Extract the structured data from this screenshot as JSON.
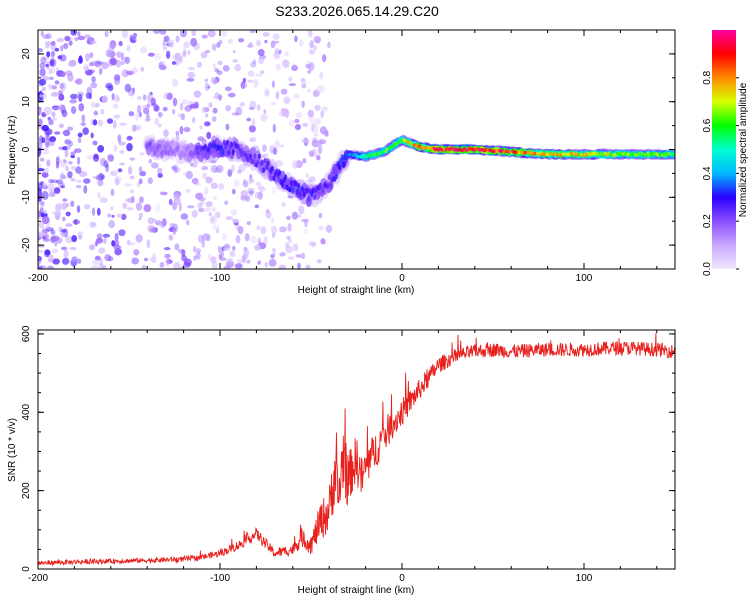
{
  "figure_title": "S233.2026.065.14.29.C20",
  "chart_data": [
    {
      "type": "heatmap",
      "title": "S233.2026.065.14.29.C20",
      "xlabel": "Height of straight line (km)",
      "ylabel": "Frequency (Hz)",
      "xlim": [
        -200,
        150
      ],
      "ylim": [
        -25,
        25
      ],
      "x_ticks": [
        -200,
        -100,
        0,
        100
      ],
      "y_ticks": [
        -20,
        -10,
        0,
        10,
        20
      ],
      "ridge": {
        "description": "Doppler trace (dominant spectral ridge)",
        "x": [
          -140,
          -130,
          -120,
          -110,
          -100,
          -90,
          -80,
          -70,
          -60,
          -50,
          -40,
          -35,
          -30,
          -20,
          -10,
          0,
          10,
          20,
          40,
          60,
          80,
          100,
          120,
          150
        ],
        "freq": [
          0.5,
          0.0,
          -0.5,
          -0.5,
          0.5,
          0.0,
          -2.0,
          -5.0,
          -8.0,
          -10.0,
          -7.0,
          -4.0,
          -1.0,
          -1.5,
          -0.5,
          2.0,
          0.5,
          0.0,
          0.0,
          -0.5,
          -1.0,
          -1.0,
          -1.0,
          -1.0
        ],
        "amplitude": [
          0.2,
          0.18,
          0.15,
          0.25,
          0.3,
          0.25,
          0.25,
          0.28,
          0.3,
          0.28,
          0.25,
          0.3,
          0.35,
          0.55,
          0.6,
          0.65,
          0.8,
          0.9,
          0.95,
          0.85,
          0.75,
          0.7,
          0.65,
          0.6
        ]
      },
      "noise_region": {
        "x_from": -200,
        "x_to": -40,
        "amplitude": 0.05
      }
    },
    {
      "type": "colorbar",
      "label": "Normalized spectral amplitude",
      "range": [
        0,
        1
      ],
      "ticks": [
        "0.0",
        "0.2",
        "0.4",
        "0.6",
        "0.8"
      ],
      "tick_values": [
        0.0,
        0.2,
        0.4,
        0.6,
        0.8
      ],
      "colors_low_to_high": [
        "#f2e8ff",
        "#c9a8ff",
        "#8a4dff",
        "#2a00ff",
        "#00b8ff",
        "#00ffd0",
        "#00ff00",
        "#d8ff00",
        "#ff8a00",
        "#ff0000",
        "#ff00a0"
      ]
    },
    {
      "type": "line",
      "xlabel": "Height of straight line (km)",
      "ylabel": "SNR (10 * v/v)",
      "xlim": [
        -200,
        150
      ],
      "ylim": [
        0,
        610
      ],
      "x_ticks": [
        -200,
        -100,
        0,
        100
      ],
      "y_ticks": [
        0,
        200,
        400,
        600
      ],
      "series": [
        {
          "name": "SNR",
          "color": "#e8201c",
          "x": [
            -200,
            -180,
            -160,
            -140,
            -120,
            -110,
            -100,
            -90,
            -80,
            -70,
            -60,
            -55,
            -50,
            -45,
            -40,
            -37,
            -35,
            -32,
            -30,
            -27,
            -25,
            -22,
            -20,
            -15,
            -10,
            -5,
            0,
            5,
            10,
            15,
            20,
            30,
            40,
            50,
            60,
            80,
            100,
            120,
            140,
            150
          ],
          "y": [
            15,
            18,
            20,
            22,
            25,
            30,
            40,
            60,
            90,
            40,
            50,
            80,
            60,
            120,
            150,
            250,
            180,
            300,
            220,
            260,
            280,
            230,
            260,
            300,
            340,
            370,
            400,
            430,
            460,
            490,
            520,
            545,
            555,
            560,
            555,
            560,
            560,
            565,
            560,
            555
          ],
          "noise_amplitude": [
            10,
            10,
            10,
            10,
            12,
            12,
            15,
            20,
            25,
            20,
            25,
            40,
            40,
            80,
            100,
            150,
            120,
            150,
            120,
            100,
            110,
            90,
            90,
            80,
            80,
            60,
            60,
            50,
            45,
            40,
            35,
            30,
            30,
            30,
            30,
            30,
            30,
            30,
            30,
            30
          ]
        }
      ]
    }
  ]
}
